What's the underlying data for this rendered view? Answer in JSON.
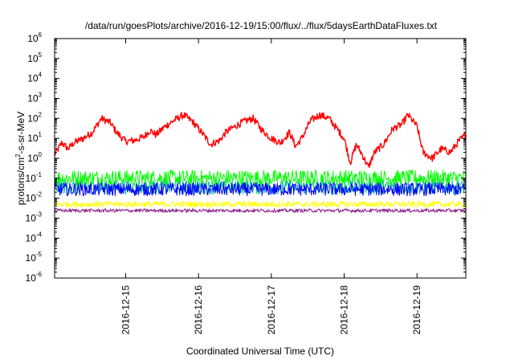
{
  "chart_data": {
    "type": "line",
    "title": "/data/run/goesPlots/archive/2016-12-19/15:00/flux/../flux/5daysEarthDataFluxes.txt",
    "xlabel": "Coordinated Universal Time (UTC)",
    "ylabel": "protons/cm2-s-sr-MeV",
    "ylabel_parts": {
      "base": "protons/cm",
      "exp": "2",
      "rest": "-s-sr-MeV"
    },
    "y_scale": "log",
    "ylim": [
      1e-06,
      1000000.0
    ],
    "y_ticks": [
      {
        "base": "10",
        "exp": "-6",
        "value": 1e-06
      },
      {
        "base": "10",
        "exp": "-5",
        "value": 1e-05
      },
      {
        "base": "10",
        "exp": "-4",
        "value": 0.0001
      },
      {
        "base": "10",
        "exp": "-3",
        "value": 0.001
      },
      {
        "base": "10",
        "exp": "-2",
        "value": 0.01
      },
      {
        "base": "10",
        "exp": "-1",
        "value": 0.1
      },
      {
        "base": "10",
        "exp": "0",
        "value": 1
      },
      {
        "base": "10",
        "exp": "1",
        "value": 10
      },
      {
        "base": "10",
        "exp": "2",
        "value": 100
      },
      {
        "base": "10",
        "exp": "3",
        "value": 1000
      },
      {
        "base": "10",
        "exp": "4",
        "value": 10000
      },
      {
        "base": "10",
        "exp": "5",
        "value": 100000
      },
      {
        "base": "10",
        "exp": "6",
        "value": 1000000
      }
    ],
    "xlim": [
      "2016-12-14T00:35",
      "2016-12-19T16:05"
    ],
    "x_ticks": [
      "2016-12-15",
      "2016-12-16",
      "2016-12-17",
      "2016-12-18",
      "2016-12-19"
    ],
    "grid": false,
    "legend": "none",
    "series": [
      {
        "color": "#ff0000",
        "noise": 0.18,
        "x": [
          "2016-12-14T00:35",
          "2016-12-14T03:00",
          "2016-12-14T05:00",
          "2016-12-14T07:00",
          "2016-12-14T10:00",
          "2016-12-14T13:00",
          "2016-12-14T16:00",
          "2016-12-14T19:00",
          "2016-12-14T21:00",
          "2016-12-15T00:00",
          "2016-12-15T03:00",
          "2016-12-15T06:00",
          "2016-12-15T08:00",
          "2016-12-15T10:00",
          "2016-12-15T13:00",
          "2016-12-15T16:00",
          "2016-12-15T19:00",
          "2016-12-15T22:00",
          "2016-12-16T01:00",
          "2016-12-16T04:00",
          "2016-12-16T07:00",
          "2016-12-16T09:00",
          "2016-12-16T12:00",
          "2016-12-16T15:00",
          "2016-12-16T18:00",
          "2016-12-16T21:00",
          "2016-12-17T00:00",
          "2016-12-17T03:00",
          "2016-12-17T06:00",
          "2016-12-17T08:00",
          "2016-12-17T10:00",
          "2016-12-17T13:00",
          "2016-12-17T16:00",
          "2016-12-17T19:00",
          "2016-12-17T21:00",
          "2016-12-18T00:00",
          "2016-12-18T02:00",
          "2016-12-18T04:00",
          "2016-12-18T06:00",
          "2016-12-18T08:00",
          "2016-12-18T10:00",
          "2016-12-18T13:00",
          "2016-12-18T16:00",
          "2016-12-18T19:00",
          "2016-12-18T21:00",
          "2016-12-19T00:00",
          "2016-12-19T02:00",
          "2016-12-19T05:00",
          "2016-12-19T08:00",
          "2016-12-19T11:00",
          "2016-12-19T14:00",
          "2016-12-19T16:05"
        ],
        "y": [
          1.5,
          6,
          3,
          6,
          10,
          20,
          100,
          60,
          20,
          7,
          8,
          12,
          25,
          15,
          40,
          80,
          150,
          70,
          20,
          5,
          8,
          20,
          40,
          70,
          100,
          25,
          10,
          6,
          20,
          4,
          10,
          80,
          150,
          100,
          40,
          10,
          0.6,
          5,
          1.5,
          0.35,
          2,
          5,
          30,
          50,
          150,
          40,
          2,
          1,
          3,
          2,
          8,
          15
        ]
      },
      {
        "color": "#00ff00",
        "noise": 0.42,
        "x": [
          "2016-12-14T00:35",
          "2016-12-19T16:05"
        ],
        "y": [
          0.1,
          0.1
        ]
      },
      {
        "color": "#1fc0a0",
        "noise": 0.35,
        "x": [
          "2016-12-14T00:35",
          "2016-12-19T16:05"
        ],
        "y": [
          0.035,
          0.035
        ]
      },
      {
        "color": "#0000ff",
        "noise": 0.33,
        "x": [
          "2016-12-14T00:35",
          "2016-12-19T16:05"
        ],
        "y": [
          0.028,
          0.028
        ]
      },
      {
        "color": "#ffff00",
        "noise": 0.15,
        "x": [
          "2016-12-14T00:35",
          "2016-12-19T16:05"
        ],
        "y": [
          0.005,
          0.005
        ]
      },
      {
        "color": "#8b1a8b",
        "noise": 0.09,
        "x": [
          "2016-12-14T00:35",
          "2016-12-19T16:05"
        ],
        "y": [
          0.0024,
          0.0024
        ]
      }
    ]
  }
}
